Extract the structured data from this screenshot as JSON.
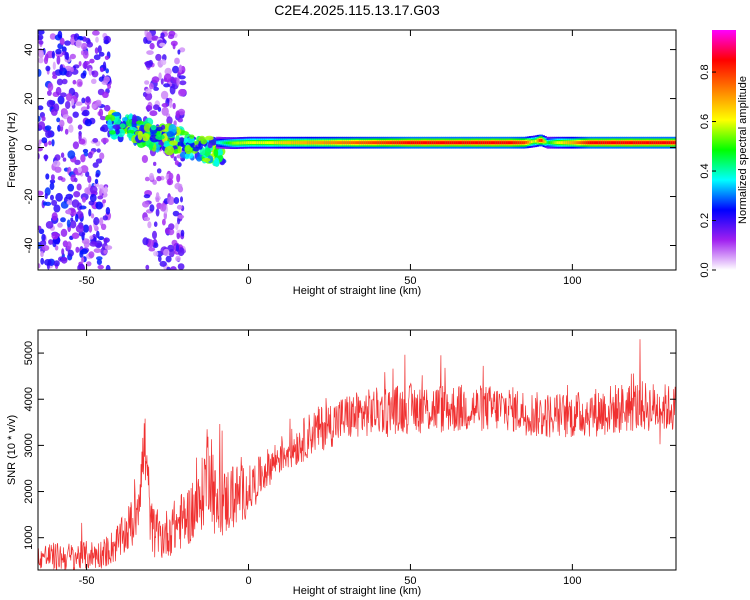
{
  "page": {
    "title": "C2E4.2025.115.13.17.G03"
  },
  "chart_data": [
    {
      "type": "heatmap",
      "title": "C2E4.2025.115.13.17.G03",
      "xlabel": "Height of straight line (km)",
      "ylabel": "Frequency (Hz)",
      "xlim": [
        -65,
        132
      ],
      "ylim": [
        -50,
        48
      ],
      "xticks": [
        -50,
        0,
        50,
        100
      ],
      "yticks": [
        -40,
        -20,
        0,
        20,
        40
      ],
      "colorbar": {
        "label": "Normalized spectral amplitude",
        "range": [
          0,
          0.97
        ],
        "ticks": [
          0.0,
          0.2,
          0.4,
          0.6,
          0.8
        ],
        "tick_labels": [
          "0.0",
          "0.2",
          "0.4",
          "0.6",
          "0.8"
        ],
        "colormap": [
          "#ffffff",
          "#a020f0",
          "#0000ff",
          "#00ffff",
          "#00ff00",
          "#ffff00",
          "#ff8000",
          "#ff0000",
          "#ff00ff"
        ]
      },
      "features": [
        {
          "x_range": [
            -65,
            -43
          ],
          "freq_range": [
            -50,
            48
          ],
          "amplitude": 0.15,
          "pattern": "scattered noise"
        },
        {
          "x_range": [
            -32,
            -20
          ],
          "freq_range": [
            -50,
            48
          ],
          "amplitude": 0.12,
          "pattern": "scattered noise"
        },
        {
          "x_range": [
            -43,
            -8
          ],
          "freq_range": [
            -8,
            10
          ],
          "amplitude": 0.35,
          "pattern": "descending band"
        },
        {
          "x_range": [
            -10,
            132
          ],
          "freq_center": 2,
          "freq_halfwidth": 1.5,
          "amplitude": 0.85,
          "pattern": "stable tone"
        }
      ],
      "tone_profile": {
        "x": [
          -10,
          -5,
          0,
          5,
          10,
          20,
          30,
          40,
          50,
          60,
          70,
          80,
          85,
          88,
          90,
          92,
          95,
          100,
          105,
          110,
          115,
          120,
          132
        ],
        "freq": [
          2,
          1.8,
          2,
          2,
          2,
          2,
          2,
          2,
          2,
          2,
          2,
          2,
          2,
          2.5,
          3,
          2,
          2,
          2,
          2,
          2,
          2,
          2,
          2
        ],
        "amplitude": [
          0.35,
          0.55,
          0.6,
          0.6,
          0.65,
          0.7,
          0.75,
          0.8,
          0.85,
          0.85,
          0.85,
          0.85,
          0.8,
          0.55,
          0.85,
          0.45,
          0.6,
          0.7,
          0.85,
          0.85,
          0.85,
          0.85,
          0.85
        ]
      }
    },
    {
      "type": "line",
      "xlabel": "Height of straight line (km)",
      "ylabel": "SNR (10 * v/v)",
      "xlim": [
        -65,
        132
      ],
      "ylim": [
        300,
        5500
      ],
      "xticks": [
        -50,
        0,
        50,
        100
      ],
      "yticks": [
        1000,
        2000,
        3000,
        4000,
        5000
      ],
      "color": "#f03030",
      "series": [
        {
          "x": [
            -65,
            -55,
            -45,
            -40,
            -35,
            -32,
            -30,
            -27,
            -20,
            -15,
            -12,
            -10,
            -5,
            0,
            5,
            10,
            15,
            20,
            30,
            40,
            50,
            60,
            70,
            80,
            90,
            100,
            110,
            120,
            132
          ],
          "mean": [
            600,
            580,
            650,
            900,
            1400,
            3000,
            1200,
            1000,
            1400,
            1700,
            2800,
            1600,
            1900,
            2000,
            2450,
            2800,
            3000,
            3300,
            3600,
            3750,
            3800,
            3800,
            3800,
            3800,
            3650,
            3650,
            3750,
            3850,
            3800
          ],
          "spread": [
            300,
            320,
            320,
            420,
            600,
            900,
            600,
            500,
            650,
            700,
            1200,
            750,
            750,
            550,
            420,
            420,
            450,
            500,
            520,
            520,
            550,
            550,
            520,
            500,
            500,
            500,
            560,
            560,
            520
          ]
        }
      ]
    }
  ]
}
